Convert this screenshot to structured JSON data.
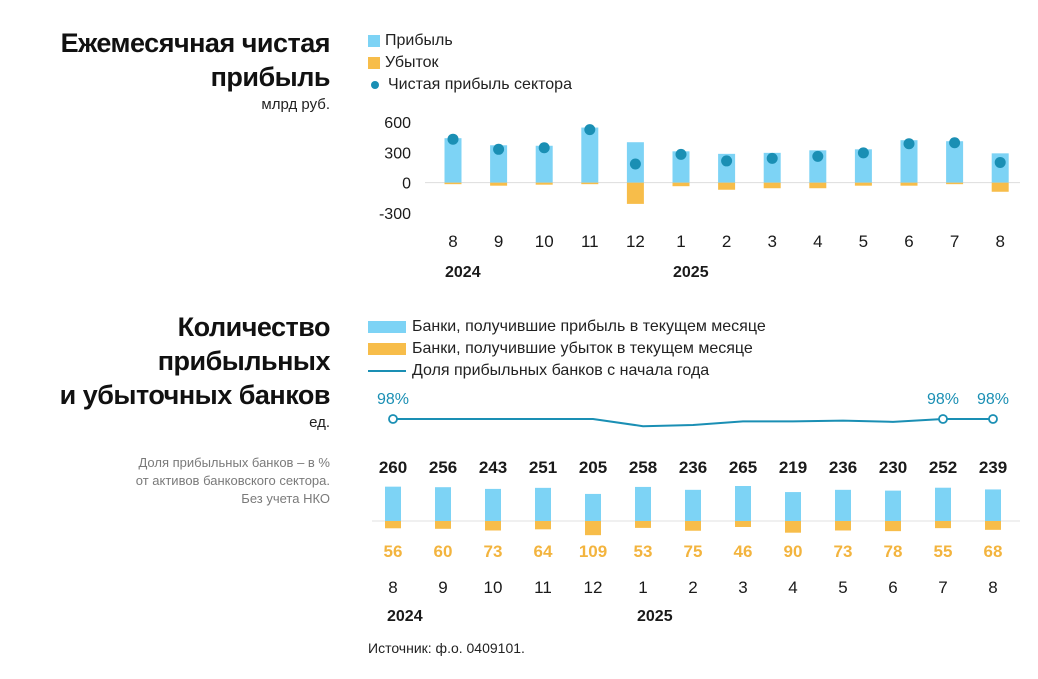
{
  "colors": {
    "profit": "#7dd3f5",
    "loss": "#f7bd4a",
    "dot": "#1a8fb4",
    "line": "#1a8fb4",
    "loss_label": "#f3b43e",
    "axis": "#cccccc"
  },
  "chart1": {
    "title_line1": "Ежемесячная чистая",
    "title_line2": "прибыль",
    "unit": "млрд руб.",
    "legend": {
      "profit": "Прибыль",
      "loss": "Убыток",
      "net": "Чистая прибыль сектора"
    }
  },
  "chart2": {
    "title_line1": "Количество",
    "title_line2": "прибыльных",
    "title_line3": "и убыточных банков",
    "unit": "ед.",
    "note_line1": "Доля прибыльных банков – в %",
    "note_line2": "от активов банковского сектора.",
    "note_line3": "Без учета НКО",
    "legend": {
      "profit": "Банки, получившие прибыль в текущем месяце",
      "loss": "Банки, получившие убыток в текущем месяце",
      "share": "Доля прибыльных банков с начала года"
    }
  },
  "source": "Источник: ф.о. 0409101.",
  "chart_data": [
    {
      "type": "bar",
      "title": "Ежемесячная чистая прибыль",
      "ylabel": "млрд руб.",
      "categories": [
        "8",
        "9",
        "10",
        "11",
        "12",
        "1",
        "2",
        "3",
        "4",
        "5",
        "6",
        "7",
        "8"
      ],
      "year_labels": [
        {
          "label": "2024",
          "index": 0
        },
        {
          "label": "2025",
          "index": 5
        }
      ],
      "ylim": [
        -300,
        600
      ],
      "yticks": [
        600,
        300,
        0,
        -300
      ],
      "ytick_labels": [
        "600",
        "300",
        "0",
        "-300"
      ],
      "series": [
        {
          "name": "Прибыль",
          "values": [
            440,
            370,
            365,
            545,
            400,
            310,
            285,
            295,
            320,
            330,
            420,
            410,
            290
          ]
        },
        {
          "name": "Убыток",
          "values": [
            -15,
            -30,
            -20,
            -15,
            -210,
            -35,
            -70,
            -55,
            -55,
            -30,
            -30,
            -15,
            -90
          ]
        },
        {
          "name": "Чистая прибыль сектора",
          "values": [
            430,
            330,
            345,
            525,
            185,
            280,
            215,
            240,
            260,
            295,
            385,
            395,
            200
          ]
        }
      ]
    },
    {
      "type": "bar",
      "title": "Количество прибыльных и убыточных банков",
      "ylabel": "ед.",
      "categories": [
        "8",
        "9",
        "10",
        "11",
        "12",
        "1",
        "2",
        "3",
        "4",
        "5",
        "6",
        "7",
        "8"
      ],
      "year_labels": [
        {
          "label": "2024",
          "index": 0
        },
        {
          "label": "2025",
          "index": 5
        }
      ],
      "series": [
        {
          "name": "Банки, получившие прибыль в текущем месяце",
          "values": [
            260,
            256,
            243,
            251,
            205,
            258,
            236,
            265,
            219,
            236,
            230,
            252,
            239
          ]
        },
        {
          "name": "Банки, получившие убыток в текущем месяце",
          "values": [
            56,
            60,
            73,
            64,
            109,
            53,
            75,
            46,
            90,
            73,
            78,
            55,
            68
          ]
        },
        {
          "name": "Доля прибыльных банков с начала года",
          "values": [
            98,
            98,
            98,
            98,
            98,
            95,
            95.5,
            97,
            97,
            97.3,
            96.8,
            98,
            98
          ],
          "labels": [
            {
              "index": 0,
              "text": "98%"
            },
            {
              "index": 11,
              "text": "98%"
            },
            {
              "index": 12,
              "text": "98%"
            }
          ]
        }
      ]
    }
  ]
}
